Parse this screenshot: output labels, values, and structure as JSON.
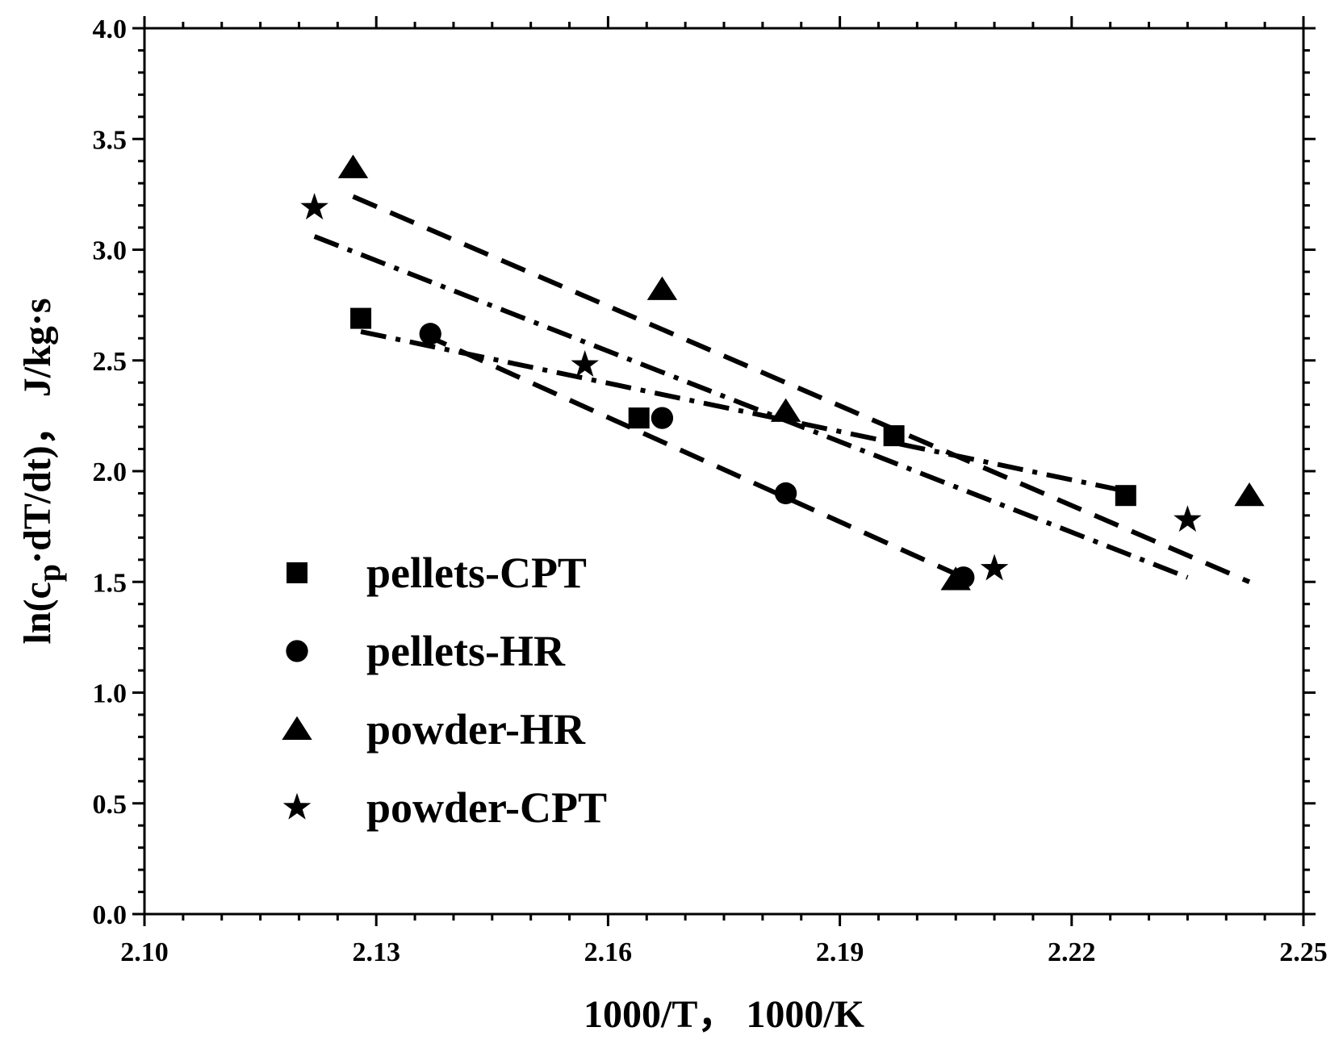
{
  "chart_data": {
    "type": "scatter",
    "xlabel": "1000/T， 1000/K",
    "ylabel": {
      "prefix": "ln(c",
      "subscript": "p",
      "suffix": "·dT/dt)， J/kg·s"
    },
    "xlim": [
      2.1,
      2.25
    ],
    "ylim": [
      0.0,
      4.0
    ],
    "x_ticks": [
      "2.10",
      "2.13",
      "2.16",
      "2.19",
      "2.22",
      "2.25"
    ],
    "y_ticks": [
      "0.0",
      "0.5",
      "1.0",
      "1.5",
      "2.0",
      "2.5",
      "3.0",
      "3.5",
      "4.0"
    ],
    "legend_position": "lower-left",
    "series": [
      {
        "name": "pellets-CPT",
        "marker": "square",
        "points": [
          [
            2.128,
            2.69
          ],
          [
            2.164,
            2.24
          ],
          [
            2.197,
            2.16
          ],
          [
            2.227,
            1.89
          ]
        ],
        "fit": {
          "style": "dash-dot",
          "from": [
            2.128,
            2.63
          ],
          "to": [
            2.227,
            1.91
          ]
        }
      },
      {
        "name": "pellets-HR",
        "marker": "circle",
        "points": [
          [
            2.137,
            2.62
          ],
          [
            2.167,
            2.24
          ],
          [
            2.183,
            1.9
          ],
          [
            2.206,
            1.52
          ]
        ],
        "fit": {
          "style": "dash",
          "from": [
            2.136,
            2.62
          ],
          "to": [
            2.206,
            1.52
          ]
        }
      },
      {
        "name": "powder-HR",
        "marker": "triangle",
        "points": [
          [
            2.127,
            3.37
          ],
          [
            2.167,
            2.82
          ],
          [
            2.183,
            2.27
          ],
          [
            2.205,
            1.51
          ],
          [
            2.243,
            1.89
          ]
        ],
        "fit": {
          "style": "dash",
          "from": [
            2.127,
            3.24
          ],
          "to": [
            2.243,
            1.5
          ]
        }
      },
      {
        "name": "powder-CPT",
        "marker": "star",
        "points": [
          [
            2.122,
            3.19
          ],
          [
            2.157,
            2.48
          ],
          [
            2.21,
            1.56
          ],
          [
            2.235,
            1.78
          ]
        ],
        "fit": {
          "style": "dash-dot",
          "from": [
            2.122,
            3.06
          ],
          "to": [
            2.235,
            1.52
          ]
        }
      }
    ]
  }
}
